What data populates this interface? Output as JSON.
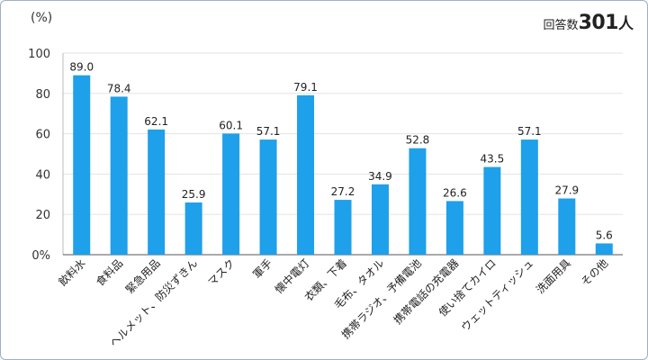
{
  "respondents": {
    "label": "回答数",
    "count": "301",
    "unit": "人"
  },
  "chart_data": {
    "type": "bar",
    "title": "",
    "xlabel": "",
    "ylabel": "(%)",
    "ylim": [
      0,
      100
    ],
    "yticks": [
      0,
      20,
      40,
      60,
      80,
      100
    ],
    "ytick_labels": [
      "0%",
      "20",
      "40",
      "60",
      "80",
      "100"
    ],
    "grid": true,
    "bar_color": "#1ea0ea",
    "categories": [
      "飲料水",
      "食料品",
      "緊急用品",
      "ヘルメット、防災ずきん",
      "マスク",
      "軍手",
      "懐中電灯",
      "衣類、下着",
      "毛布、タオル",
      "携帯ラジオ、予備電池",
      "携帯電話の充電器",
      "使い捨てカイロ",
      "ウェットティッシュ",
      "洗面用具",
      "その他"
    ],
    "values": [
      89.0,
      78.4,
      62.1,
      25.9,
      60.1,
      57.1,
      79.1,
      27.2,
      34.9,
      52.8,
      26.6,
      43.5,
      57.1,
      27.9,
      5.6
    ],
    "value_labels": [
      "89.0",
      "78.4",
      "62.1",
      "25.9",
      "60.1",
      "57.1",
      "79.1",
      "27.2",
      "34.9",
      "52.8",
      "26.6",
      "43.5",
      "57.1",
      "27.9",
      "5.6"
    ]
  }
}
